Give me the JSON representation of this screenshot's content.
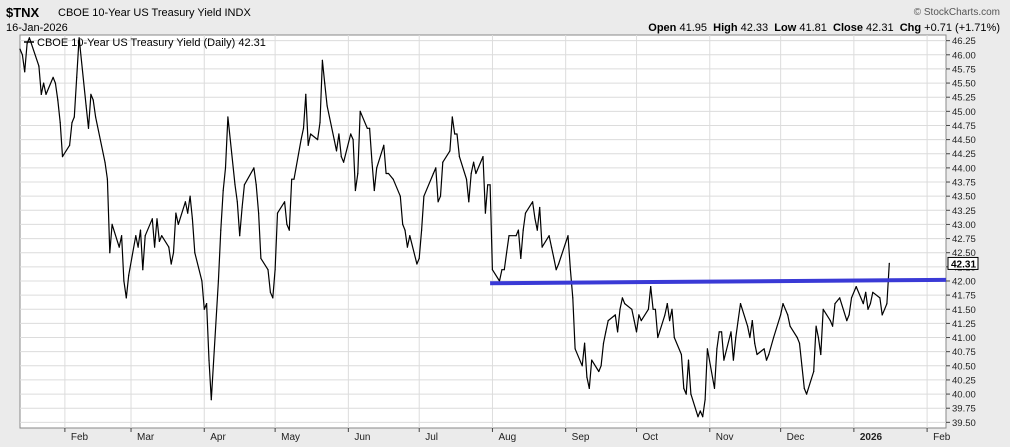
{
  "header": {
    "symbol": "$TNX",
    "description": "CBOE 10-Year US Treasury Yield INDX",
    "date": "16-Jan-2026",
    "brand": "© StockCharts.com",
    "open_label": "Open",
    "open": "41.95",
    "high_label": "High",
    "high": "42.33",
    "low_label": "Low",
    "low": "41.81",
    "close_label": "Close",
    "close": "42.31",
    "chg_label": "Chg",
    "chg": "+0.71 (+1.71%)"
  },
  "chart_data": {
    "type": "line",
    "legend": "CBOE 10-Year US Treasury Yield (Daily) 42.31",
    "last_value_label": "42.31",
    "ylim": [
      39.4,
      46.35
    ],
    "yticks": [
      "46.25",
      "46.00",
      "45.75",
      "45.50",
      "45.25",
      "45.00",
      "44.75",
      "44.50",
      "44.25",
      "44.00",
      "43.75",
      "43.50",
      "43.25",
      "43.00",
      "42.75",
      "42.50",
      "42.25",
      "42.00",
      "41.75",
      "41.50",
      "41.25",
      "41.00",
      "40.75",
      "40.50",
      "40.25",
      "40.00",
      "39.75",
      "39.50"
    ],
    "month_labels": [
      "Feb",
      "Mar",
      "Apr",
      "May",
      "Jun",
      "Jul",
      "Aug",
      "Sep",
      "Oct",
      "Nov",
      "Dec",
      "2026",
      "Feb"
    ],
    "xrange": [
      "2025-01-13",
      "2026-02-09"
    ],
    "series": [
      {
        "values": [
          [
            "2025-01-13",
            46.1
          ],
          [
            "2025-01-14",
            46.0
          ],
          [
            "2025-01-15",
            45.7
          ],
          [
            "2025-01-16",
            46.2
          ],
          [
            "2025-01-17",
            46.3
          ],
          [
            "2025-01-21",
            45.8
          ],
          [
            "2025-01-22",
            45.3
          ],
          [
            "2025-01-23",
            45.5
          ],
          [
            "2025-01-24",
            45.3
          ],
          [
            "2025-01-27",
            45.6
          ],
          [
            "2025-01-28",
            45.5
          ],
          [
            "2025-01-29",
            45.2
          ],
          [
            "2025-01-30",
            44.8
          ],
          [
            "2025-01-31",
            44.2
          ],
          [
            "2025-02-03",
            44.4
          ],
          [
            "2025-02-04",
            44.8
          ],
          [
            "2025-02-05",
            44.9
          ],
          [
            "2025-02-06",
            45.6
          ],
          [
            "2025-02-07",
            46.3
          ],
          [
            "2025-02-10",
            45.1
          ],
          [
            "2025-02-11",
            44.7
          ],
          [
            "2025-02-12",
            45.3
          ],
          [
            "2025-02-13",
            45.2
          ],
          [
            "2025-02-14",
            44.9
          ],
          [
            "2025-02-18",
            44.1
          ],
          [
            "2025-02-19",
            43.8
          ],
          [
            "2025-02-20",
            42.5
          ],
          [
            "2025-02-21",
            43.0
          ],
          [
            "2025-02-24",
            42.6
          ],
          [
            "2025-02-25",
            42.8
          ],
          [
            "2025-02-26",
            42.0
          ],
          [
            "2025-02-27",
            41.7
          ],
          [
            "2025-02-28",
            42.1
          ],
          [
            "2025-03-03",
            42.8
          ],
          [
            "2025-03-04",
            42.6
          ],
          [
            "2025-03-05",
            42.9
          ],
          [
            "2025-03-06",
            42.2
          ],
          [
            "2025-03-07",
            42.8
          ],
          [
            "2025-03-10",
            43.1
          ],
          [
            "2025-03-11",
            42.6
          ],
          [
            "2025-03-12",
            43.1
          ],
          [
            "2025-03-13",
            42.7
          ],
          [
            "2025-03-14",
            42.8
          ],
          [
            "2025-03-17",
            42.6
          ],
          [
            "2025-03-18",
            42.3
          ],
          [
            "2025-03-19",
            42.5
          ],
          [
            "2025-03-20",
            43.2
          ],
          [
            "2025-03-21",
            43.0
          ],
          [
            "2025-03-24",
            43.4
          ],
          [
            "2025-03-25",
            43.2
          ],
          [
            "2025-03-26",
            43.5
          ],
          [
            "2025-03-27",
            43.1
          ],
          [
            "2025-03-28",
            42.5
          ],
          [
            "2025-03-31",
            42.0
          ],
          [
            "2025-04-01",
            41.5
          ],
          [
            "2025-04-02",
            41.6
          ],
          [
            "2025-04-03",
            40.6
          ],
          [
            "2025-04-04",
            39.9
          ],
          [
            "2025-04-07",
            42.0
          ],
          [
            "2025-04-08",
            42.9
          ],
          [
            "2025-04-09",
            43.6
          ],
          [
            "2025-04-10",
            44.0
          ],
          [
            "2025-04-11",
            44.9
          ],
          [
            "2025-04-14",
            43.7
          ],
          [
            "2025-04-15",
            43.4
          ],
          [
            "2025-04-16",
            42.8
          ],
          [
            "2025-04-17",
            43.3
          ],
          [
            "2025-04-18",
            43.7
          ],
          [
            "2025-04-22",
            44.0
          ],
          [
            "2025-04-23",
            43.7
          ],
          [
            "2025-04-24",
            43.2
          ],
          [
            "2025-04-25",
            42.4
          ],
          [
            "2025-04-28",
            42.2
          ],
          [
            "2025-04-29",
            41.8
          ],
          [
            "2025-04-30",
            41.7
          ],
          [
            "2025-05-01",
            42.2
          ],
          [
            "2025-05-02",
            43.2
          ],
          [
            "2025-05-05",
            43.4
          ],
          [
            "2025-05-06",
            43.0
          ],
          [
            "2025-05-07",
            42.9
          ],
          [
            "2025-05-08",
            43.8
          ],
          [
            "2025-05-09",
            43.8
          ],
          [
            "2025-05-12",
            44.5
          ],
          [
            "2025-05-13",
            44.7
          ],
          [
            "2025-05-14",
            45.3
          ],
          [
            "2025-05-15",
            44.4
          ],
          [
            "2025-05-16",
            44.6
          ],
          [
            "2025-05-19",
            44.5
          ],
          [
            "2025-05-20",
            44.8
          ],
          [
            "2025-05-21",
            45.9
          ],
          [
            "2025-05-22",
            45.5
          ],
          [
            "2025-05-23",
            45.1
          ],
          [
            "2025-05-26",
            44.5
          ],
          [
            "2025-05-27",
            44.3
          ],
          [
            "2025-05-28",
            44.6
          ],
          [
            "2025-05-29",
            44.2
          ],
          [
            "2025-05-30",
            44.1
          ],
          [
            "2025-06-02",
            44.6
          ],
          [
            "2025-06-03",
            44.5
          ],
          [
            "2025-06-04",
            43.6
          ],
          [
            "2025-06-05",
            43.9
          ],
          [
            "2025-06-06",
            45.0
          ],
          [
            "2025-06-09",
            44.7
          ],
          [
            "2025-06-10",
            44.7
          ],
          [
            "2025-06-11",
            44.1
          ],
          [
            "2025-06-12",
            43.6
          ],
          [
            "2025-06-13",
            44.0
          ],
          [
            "2025-06-16",
            44.4
          ],
          [
            "2025-06-17",
            43.9
          ],
          [
            "2025-06-18",
            43.9
          ],
          [
            "2025-06-20",
            43.8
          ],
          [
            "2025-06-23",
            43.5
          ],
          [
            "2025-06-24",
            43.0
          ],
          [
            "2025-06-25",
            42.9
          ],
          [
            "2025-06-26",
            42.6
          ],
          [
            "2025-06-27",
            42.8
          ],
          [
            "2025-06-30",
            42.3
          ],
          [
            "2025-07-01",
            42.4
          ],
          [
            "2025-07-02",
            42.9
          ],
          [
            "2025-07-03",
            43.5
          ],
          [
            "2025-07-07",
            43.9
          ],
          [
            "2025-07-08",
            44.0
          ],
          [
            "2025-07-09",
            43.4
          ],
          [
            "2025-07-10",
            43.5
          ],
          [
            "2025-07-11",
            44.1
          ],
          [
            "2025-07-14",
            44.3
          ],
          [
            "2025-07-15",
            44.9
          ],
          [
            "2025-07-16",
            44.6
          ],
          [
            "2025-07-17",
            44.6
          ],
          [
            "2025-07-18",
            44.2
          ],
          [
            "2025-07-21",
            43.8
          ],
          [
            "2025-07-22",
            43.4
          ],
          [
            "2025-07-23",
            43.9
          ],
          [
            "2025-07-24",
            44.1
          ],
          [
            "2025-07-25",
            43.9
          ],
          [
            "2025-07-28",
            44.2
          ],
          [
            "2025-07-29",
            43.2
          ],
          [
            "2025-07-30",
            43.7
          ],
          [
            "2025-07-31",
            43.7
          ],
          [
            "2025-08-01",
            42.2
          ],
          [
            "2025-08-04",
            42.0
          ],
          [
            "2025-08-05",
            42.2
          ],
          [
            "2025-08-06",
            42.2
          ],
          [
            "2025-08-07",
            42.5
          ],
          [
            "2025-08-08",
            42.8
          ],
          [
            "2025-08-11",
            42.8
          ],
          [
            "2025-08-12",
            42.9
          ],
          [
            "2025-08-13",
            42.4
          ],
          [
            "2025-08-14",
            42.9
          ],
          [
            "2025-08-15",
            43.2
          ],
          [
            "2025-08-18",
            43.4
          ],
          [
            "2025-08-19",
            43.1
          ],
          [
            "2025-08-20",
            42.9
          ],
          [
            "2025-08-21",
            43.3
          ],
          [
            "2025-08-22",
            42.6
          ],
          [
            "2025-08-25",
            42.8
          ],
          [
            "2025-08-26",
            42.6
          ],
          [
            "2025-08-27",
            42.4
          ],
          [
            "2025-08-28",
            42.2
          ],
          [
            "2025-08-29",
            42.3
          ],
          [
            "2025-09-02",
            42.8
          ],
          [
            "2025-09-03",
            42.2
          ],
          [
            "2025-09-04",
            41.7
          ],
          [
            "2025-09-05",
            40.8
          ],
          [
            "2025-09-08",
            40.5
          ],
          [
            "2025-09-09",
            40.9
          ],
          [
            "2025-09-10",
            40.3
          ],
          [
            "2025-09-11",
            40.1
          ],
          [
            "2025-09-12",
            40.6
          ],
          [
            "2025-09-15",
            40.4
          ],
          [
            "2025-09-16",
            40.5
          ],
          [
            "2025-09-17",
            40.9
          ],
          [
            "2025-09-18",
            41.1
          ],
          [
            "2025-09-19",
            41.3
          ],
          [
            "2025-09-22",
            41.4
          ],
          [
            "2025-09-23",
            41.1
          ],
          [
            "2025-09-24",
            41.5
          ],
          [
            "2025-09-25",
            41.7
          ],
          [
            "2025-09-26",
            41.6
          ],
          [
            "2025-09-29",
            41.5
          ],
          [
            "2025-09-30",
            41.3
          ],
          [
            "2025-10-01",
            41.1
          ],
          [
            "2025-10-02",
            41.4
          ],
          [
            "2025-10-03",
            41.3
          ],
          [
            "2025-10-06",
            41.5
          ],
          [
            "2025-10-07",
            41.9
          ],
          [
            "2025-10-08",
            41.5
          ],
          [
            "2025-10-09",
            41.5
          ],
          [
            "2025-10-10",
            41.0
          ],
          [
            "2025-10-13",
            41.4
          ],
          [
            "2025-10-14",
            41.6
          ],
          [
            "2025-10-15",
            41.3
          ],
          [
            "2025-10-16",
            41.5
          ],
          [
            "2025-10-17",
            41.0
          ],
          [
            "2025-10-20",
            40.7
          ],
          [
            "2025-10-21",
            40.1
          ],
          [
            "2025-10-22",
            40.0
          ],
          [
            "2025-10-23",
            40.6
          ],
          [
            "2025-10-24",
            40.0
          ],
          [
            "2025-10-27",
            39.6
          ],
          [
            "2025-10-28",
            39.7
          ],
          [
            "2025-10-29",
            39.6
          ],
          [
            "2025-10-30",
            39.9
          ],
          [
            "2025-10-31",
            40.8
          ],
          [
            "2025-11-03",
            40.1
          ],
          [
            "2025-11-04",
            40.8
          ],
          [
            "2025-11-05",
            41.1
          ],
          [
            "2025-11-06",
            41.1
          ],
          [
            "2025-11-07",
            40.6
          ],
          [
            "2025-11-10",
            41.1
          ],
          [
            "2025-11-11",
            40.6
          ],
          [
            "2025-11-12",
            41.0
          ],
          [
            "2025-11-13",
            41.3
          ],
          [
            "2025-11-14",
            41.6
          ],
          [
            "2025-11-17",
            41.2
          ],
          [
            "2025-11-18",
            41.0
          ],
          [
            "2025-11-19",
            41.3
          ],
          [
            "2025-11-20",
            40.9
          ],
          [
            "2025-11-21",
            40.7
          ],
          [
            "2025-11-24",
            40.8
          ],
          [
            "2025-11-25",
            40.6
          ],
          [
            "2025-11-26",
            40.7
          ],
          [
            "2025-11-28",
            41.0
          ],
          [
            "2025-12-01",
            41.4
          ],
          [
            "2025-12-02",
            41.6
          ],
          [
            "2025-12-03",
            41.5
          ],
          [
            "2025-12-04",
            41.4
          ],
          [
            "2025-12-05",
            41.2
          ],
          [
            "2025-12-08",
            41.0
          ],
          [
            "2025-12-09",
            40.9
          ],
          [
            "2025-12-10",
            40.5
          ],
          [
            "2025-12-11",
            40.1
          ],
          [
            "2025-12-12",
            40.0
          ],
          [
            "2025-12-15",
            40.4
          ],
          [
            "2025-12-16",
            41.2
          ],
          [
            "2025-12-17",
            41.0
          ],
          [
            "2025-12-18",
            40.7
          ],
          [
            "2025-12-19",
            41.5
          ],
          [
            "2025-12-22",
            41.3
          ],
          [
            "2025-12-23",
            41.2
          ],
          [
            "2025-12-24",
            41.6
          ],
          [
            "2025-12-26",
            41.7
          ],
          [
            "2025-12-29",
            41.3
          ],
          [
            "2025-12-30",
            41.4
          ],
          [
            "2025-12-31",
            41.7
          ],
          [
            "2026-01-02",
            41.9
          ],
          [
            "2026-01-05",
            41.6
          ],
          [
            "2026-01-06",
            41.8
          ],
          [
            "2026-01-07",
            41.5
          ],
          [
            "2026-01-08",
            41.6
          ],
          [
            "2026-01-09",
            41.8
          ],
          [
            "2026-01-12",
            41.7
          ],
          [
            "2026-01-13",
            41.4
          ],
          [
            "2026-01-14",
            41.5
          ],
          [
            "2026-01-15",
            41.6
          ],
          [
            "2026-01-16",
            42.31
          ]
        ]
      }
    ],
    "trendlines": [
      {
        "start": [
          "2025-07-31",
          41.96
        ],
        "end": [
          "2026-02-09",
          42.02
        ],
        "color": "#3a3ad6"
      }
    ],
    "colors": {
      "line": "#000000",
      "trendline": "#3a3ad6",
      "plot_bg": "#ffffff",
      "grid": "#dcdcdc"
    }
  }
}
